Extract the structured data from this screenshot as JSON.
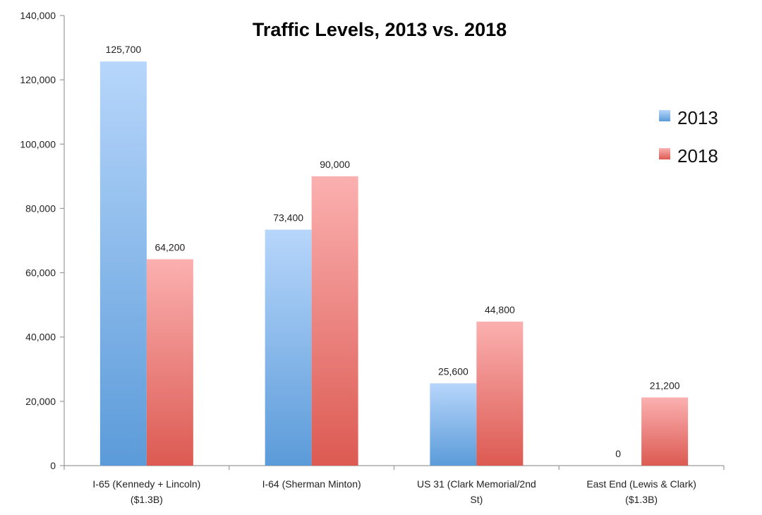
{
  "chart_data": {
    "type": "bar",
    "title": "Traffic Levels, 2013 vs. 2018",
    "categories": [
      [
        "I-65 (Kennedy + Lincoln)",
        "($1.3B)"
      ],
      [
        "I-64 (Sherman Minton)"
      ],
      [
        "US 31 (Clark Memorial/2nd",
        "St)"
      ],
      [
        "East End (Lewis & Clark)",
        "($1.3B)"
      ]
    ],
    "series": [
      {
        "name": "2013",
        "values": [
          125700,
          73400,
          25600,
          0
        ],
        "labels": [
          "125,700",
          "73,400",
          "25,600",
          "0"
        ],
        "color_top": "#b7d6fb",
        "color_bottom": "#5b9bd9"
      },
      {
        "name": "2018",
        "values": [
          64200,
          90000,
          44800,
          21200
        ],
        "labels": [
          "64,200",
          "90,000",
          "44,800",
          "21,200"
        ],
        "color_top": "#fbb0b0",
        "color_bottom": "#dc5a52"
      }
    ],
    "ylim": [
      0,
      140000
    ],
    "yticks": [
      0,
      20000,
      40000,
      60000,
      80000,
      100000,
      120000,
      140000
    ],
    "ytick_labels": [
      "0",
      "20,000",
      "40,000",
      "60,000",
      "80,000",
      "100,000",
      "120,000",
      "140,000"
    ],
    "xlabel": "",
    "ylabel": "",
    "grid": false,
    "legend": "right"
  }
}
